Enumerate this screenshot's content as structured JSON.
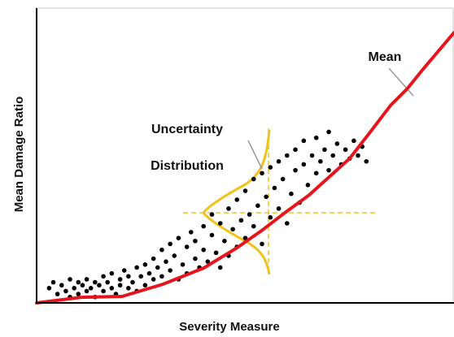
{
  "chart_data": {
    "type": "scatter",
    "xlabel": "Severity Measure",
    "ylabel": "Mean Damage Ratio",
    "annotations": [
      "Uncertainty",
      "Distribution"
    ],
    "xlim": [
      0,
      100
    ],
    "ylim": [
      0,
      100
    ],
    "color": "#000000",
    "x": [
      3,
      4,
      5,
      6,
      7,
      8,
      8,
      9,
      10,
      10,
      11,
      12,
      12,
      13,
      14,
      14,
      15,
      16,
      16,
      17,
      18,
      18,
      19,
      20,
      20,
      21,
      22,
      22,
      23,
      24,
      24,
      25,
      26,
      26,
      27,
      28,
      28,
      29,
      30,
      30,
      31,
      32,
      32,
      33,
      34,
      34,
      35,
      36,
      36,
      37,
      38,
      38,
      39,
      40,
      40,
      41,
      42,
      42,
      43,
      44,
      44,
      45,
      46,
      46,
      47,
      48,
      48,
      49,
      50,
      50,
      51,
      52,
      52,
      53,
      54,
      54,
      55,
      56,
      56,
      57,
      58,
      58,
      59,
      60,
      60,
      61,
      62,
      62,
      63,
      64,
      64,
      65,
      66,
      67,
      67,
      68,
      69,
      70,
      70,
      71,
      72,
      73,
      74,
      75,
      76,
      77,
      78,
      79
    ],
    "values": [
      5,
      7,
      3,
      6,
      4,
      8,
      2,
      5,
      7,
      3,
      6,
      4,
      8,
      5,
      7,
      2,
      6,
      4,
      9,
      7,
      5,
      10,
      3,
      8,
      6,
      11,
      5,
      9,
      7,
      12,
      4,
      9,
      13,
      6,
      10,
      15,
      8,
      12,
      18,
      9,
      14,
      11,
      20,
      16,
      8,
      22,
      13,
      19,
      10,
      24,
      15,
      21,
      12,
      26,
      18,
      14,
      23,
      30,
      17,
      27,
      12,
      21,
      32,
      16,
      25,
      19,
      35,
      28,
      22,
      38,
      30,
      26,
      42,
      33,
      20,
      44,
      36,
      29,
      46,
      39,
      32,
      48,
      42,
      27,
      50,
      37,
      45,
      52,
      34,
      47,
      55,
      40,
      50,
      44,
      56,
      48,
      52,
      45,
      58,
      50,
      54,
      47,
      52,
      49,
      55,
      50,
      53,
      48
    ],
    "mean": {
      "type": "line",
      "name": "Mean",
      "color": "#e8141b",
      "x": [
        0,
        10.7,
        20.5,
        30.2,
        40,
        47.8,
        53.6,
        59.5,
        65.3,
        75,
        79.9,
        84.8,
        88.7,
        92.6,
        100
      ],
      "values": [
        0,
        1.9,
        2.2,
        6.3,
        11.8,
        18.5,
        24.2,
        30.6,
        36.6,
        49,
        57.9,
        67,
        72.5,
        79.3,
        91.7
      ]
    }
  }
}
